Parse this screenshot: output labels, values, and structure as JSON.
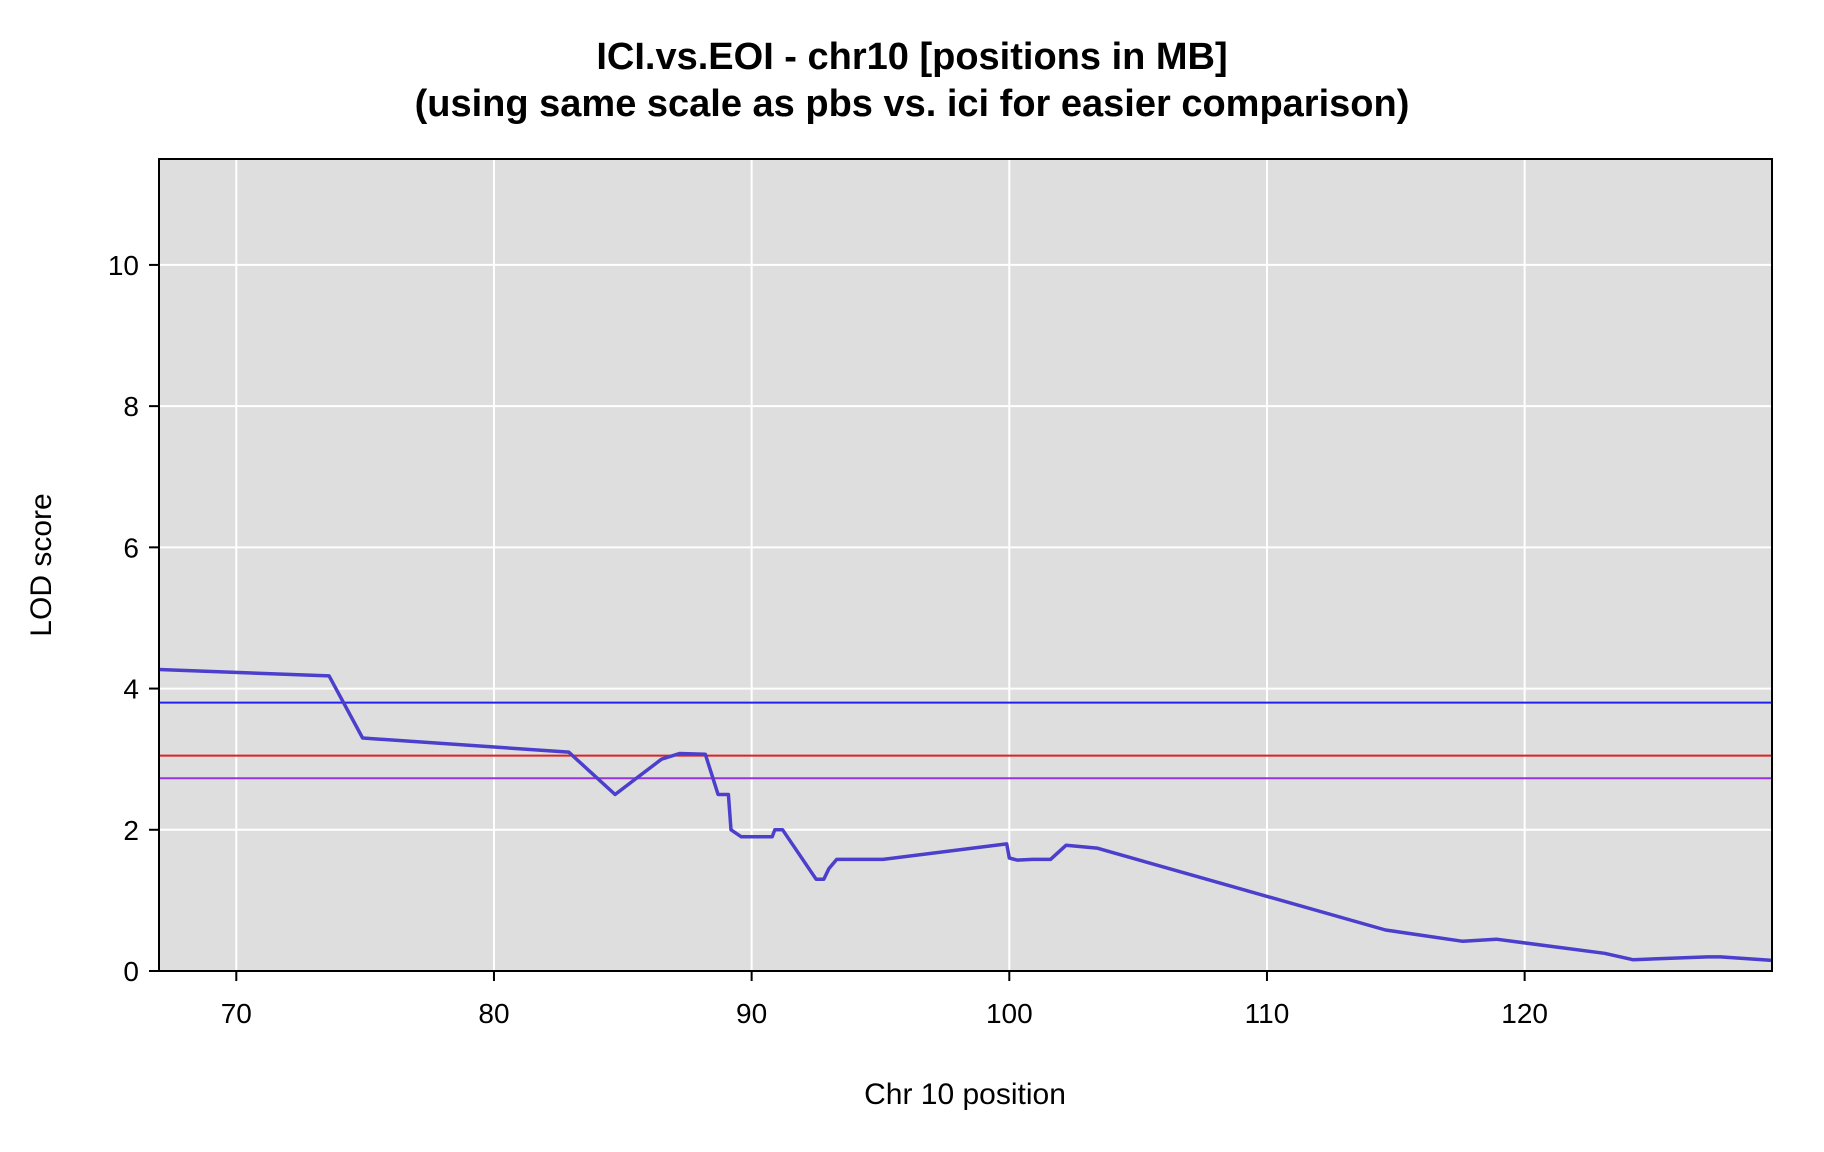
{
  "chart_data": {
    "type": "line",
    "title": "ICI.vs.EOI - chr10 [positions in MB]",
    "subtitle": "(using same scale as pbs vs. ici for easier comparison)",
    "xlabel": "Chr 10 position",
    "ylabel": "LOD score",
    "xlim": [
      67,
      129.6
    ],
    "ylim": [
      0,
      11.5
    ],
    "xticks": [
      70,
      80,
      90,
      100,
      110,
      120
    ],
    "yticks": [
      0,
      2,
      4,
      6,
      8,
      10
    ],
    "grid": true,
    "background_color": "#dedede",
    "series": [
      {
        "color": "#4b3fcc",
        "x": [
          67.0,
          73.6,
          74.9,
          82.9,
          84.7,
          86.5,
          87.2,
          88.2,
          88.7,
          89.1,
          89.2,
          89.6,
          90.8,
          90.9,
          91.2,
          92.5,
          92.8,
          93.0,
          93.3,
          95.1,
          99.9,
          100.0,
          100.3,
          100.9,
          101.6,
          102.2,
          103.4,
          114.6,
          117.6,
          118.9,
          123.1,
          124.2,
          127.1,
          127.6,
          129.6
        ],
        "y": [
          4.27,
          4.18,
          3.3,
          3.1,
          2.5,
          3.0,
          3.08,
          3.07,
          2.5,
          2.5,
          2.0,
          1.9,
          1.9,
          2.0,
          2.0,
          1.3,
          1.3,
          1.45,
          1.58,
          1.58,
          1.8,
          1.6,
          1.57,
          1.58,
          1.58,
          1.78,
          1.74,
          0.58,
          0.42,
          0.45,
          0.25,
          0.16,
          0.2,
          0.2,
          0.15
        ]
      }
    ],
    "threshold_lines": [
      {
        "y": 3.8,
        "color": "#2222ee"
      },
      {
        "y": 3.05,
        "color": "#dd2222"
      },
      {
        "y": 2.73,
        "color": "#9933dd"
      }
    ]
  }
}
